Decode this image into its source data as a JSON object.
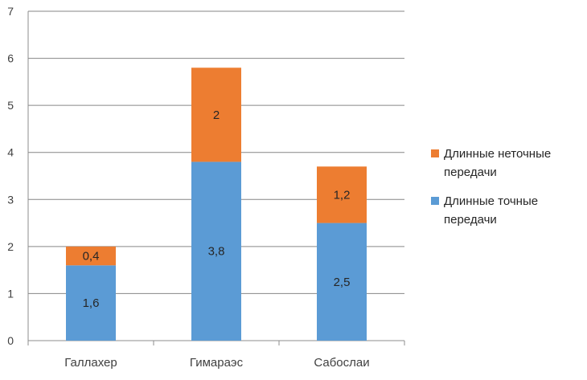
{
  "chart_data": {
    "type": "bar",
    "stacked": true,
    "categories": [
      "Галлахер",
      "Гимараэс",
      "Сабослаи"
    ],
    "series": [
      {
        "name": "Длинные точные передачи",
        "values": [
          1.6,
          3.8,
          2.5
        ],
        "labels": [
          "1,6",
          "3,8",
          "2,5"
        ],
        "color": "#5B9BD5"
      },
      {
        "name": "Длинные неточные передачи",
        "values": [
          0.4,
          2,
          1.2
        ],
        "labels": [
          "0,4",
          "2",
          "1,2"
        ],
        "color": "#ED7D31"
      }
    ],
    "y_ticks": [
      "0",
      "1",
      "2",
      "3",
      "4",
      "5",
      "6",
      "7"
    ],
    "ylim": [
      0,
      7
    ],
    "grid": true,
    "legend_position": "right",
    "legend": [
      {
        "label": "Длинные неточные передачи",
        "color": "#ED7D31"
      },
      {
        "label": "Длинные точные передачи",
        "color": "#5B9BD5"
      }
    ]
  }
}
